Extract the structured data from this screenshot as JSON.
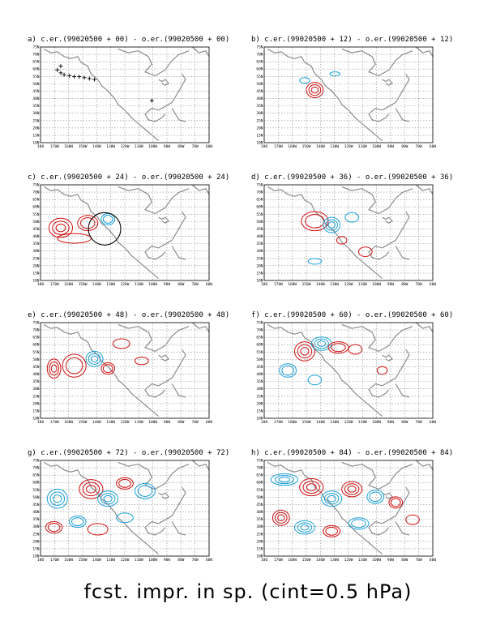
{
  "figure": {
    "caption": "fcst. impr. in sp. (cint=0.5 hPa)",
    "panels": [
      {
        "title": "a) c.er.(99020500 + 00) - o.er.(99020500 + 00)"
      },
      {
        "title": "b) c.er.(99020500 + 12) - o.er.(99020500 + 12)"
      },
      {
        "title": "c) c.er.(99020500 + 24) - o.er.(99020500 + 24)"
      },
      {
        "title": "d) c.er.(99020500 + 36) - o.er.(99020500 + 36)"
      },
      {
        "title": "e) c.er.(99020500 + 48) - o.er.(99020500 + 48)"
      },
      {
        "title": "f) c.er.(99020500 + 60) - o.er.(99020500 + 60)"
      },
      {
        "title": "g) c.er.(99020500 + 72) - o.er.(99020500 + 72)"
      },
      {
        "title": "h) c.er.(99020500 + 84) - o.er.(99020500 + 84)"
      }
    ],
    "lat_labels": [
      "10N",
      "15N",
      "20N",
      "25N",
      "30N",
      "35N",
      "40N",
      "45N",
      "50N",
      "55N",
      "60N",
      "65N",
      "70N",
      "75N"
    ],
    "lon_labels": [
      "180",
      "170W",
      "160W",
      "150W",
      "140W",
      "130W",
      "120W",
      "110W",
      "100W",
      "90W",
      "80W",
      "70W",
      "60W"
    ],
    "colors": {
      "coast": "#8c8c8c",
      "grid": "#8c8c8c",
      "positive": "#d01010",
      "negative": "#1aa0d8",
      "frame": "#000000"
    }
  }
}
